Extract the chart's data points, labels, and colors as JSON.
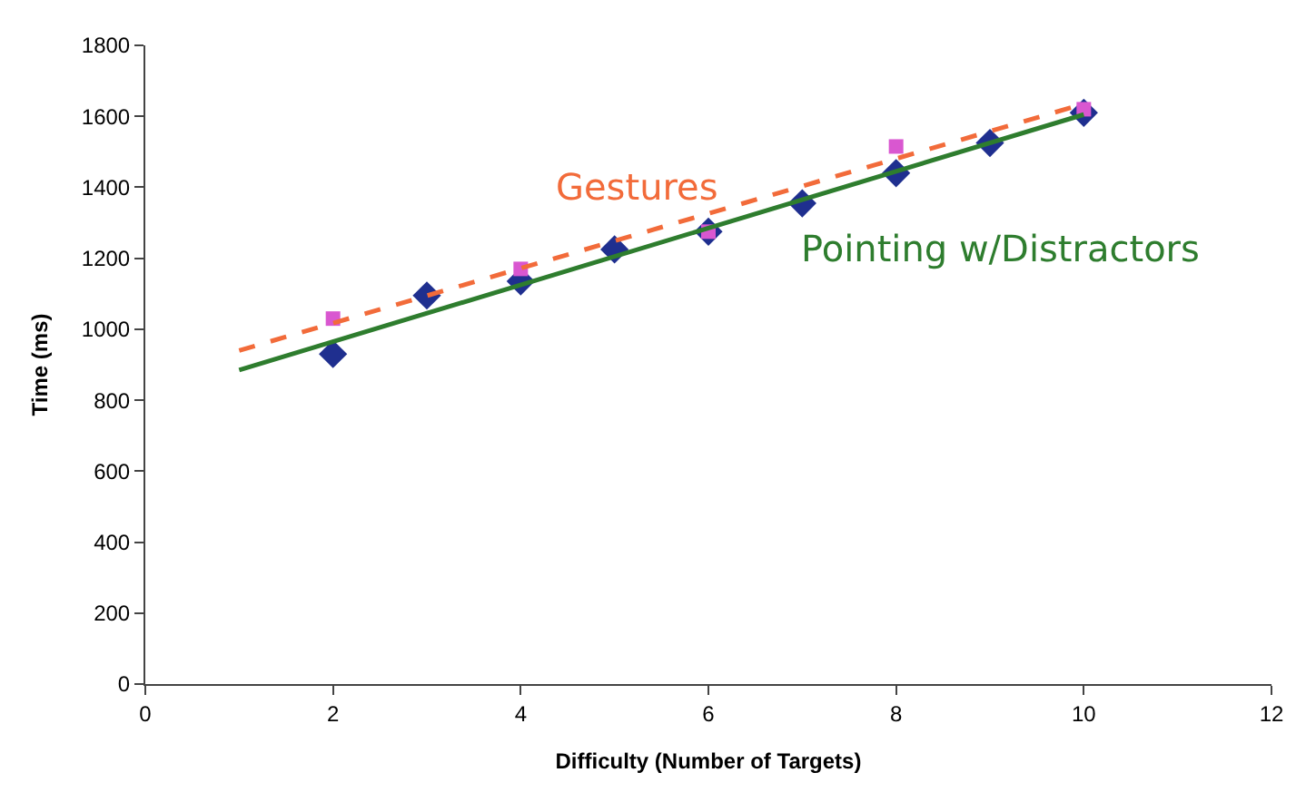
{
  "chart_data": {
    "type": "scatter",
    "xlabel": "Difficulty (Number of Targets)",
    "ylabel": "Time (ms)",
    "xlim": [
      0,
      12
    ],
    "xticks": [
      0,
      2,
      4,
      6,
      8,
      10,
      12
    ],
    "ylim": [
      0,
      1800
    ],
    "yticks": [
      0,
      200,
      400,
      600,
      800,
      1000,
      1200,
      1400,
      1600,
      1800
    ],
    "legend": false,
    "series": [
      {
        "marker": "diamond",
        "color": "#1f2f8f",
        "x": [
          2,
          3,
          4,
          5,
          6,
          7,
          8,
          9,
          10
        ],
        "values": [
          930,
          1095,
          1135,
          1225,
          1275,
          1355,
          1440,
          1525,
          1610
        ]
      },
      {
        "marker": "square",
        "color": "#d957d0",
        "x": [
          2,
          4,
          6,
          8,
          10
        ],
        "values": [
          1030,
          1170,
          1275,
          1515,
          1620
        ]
      },
      {
        "type": "line",
        "name": "Pointing w/Distractors",
        "line_style": "solid",
        "color": "#2e7d2e",
        "x": [
          1,
          10
        ],
        "values": [
          885,
          1605
        ]
      },
      {
        "type": "line",
        "name": "Gestures",
        "line_style": "dashed",
        "color": "#f26b3a",
        "x": [
          1,
          10
        ],
        "values": [
          940,
          1635
        ]
      }
    ]
  }
}
